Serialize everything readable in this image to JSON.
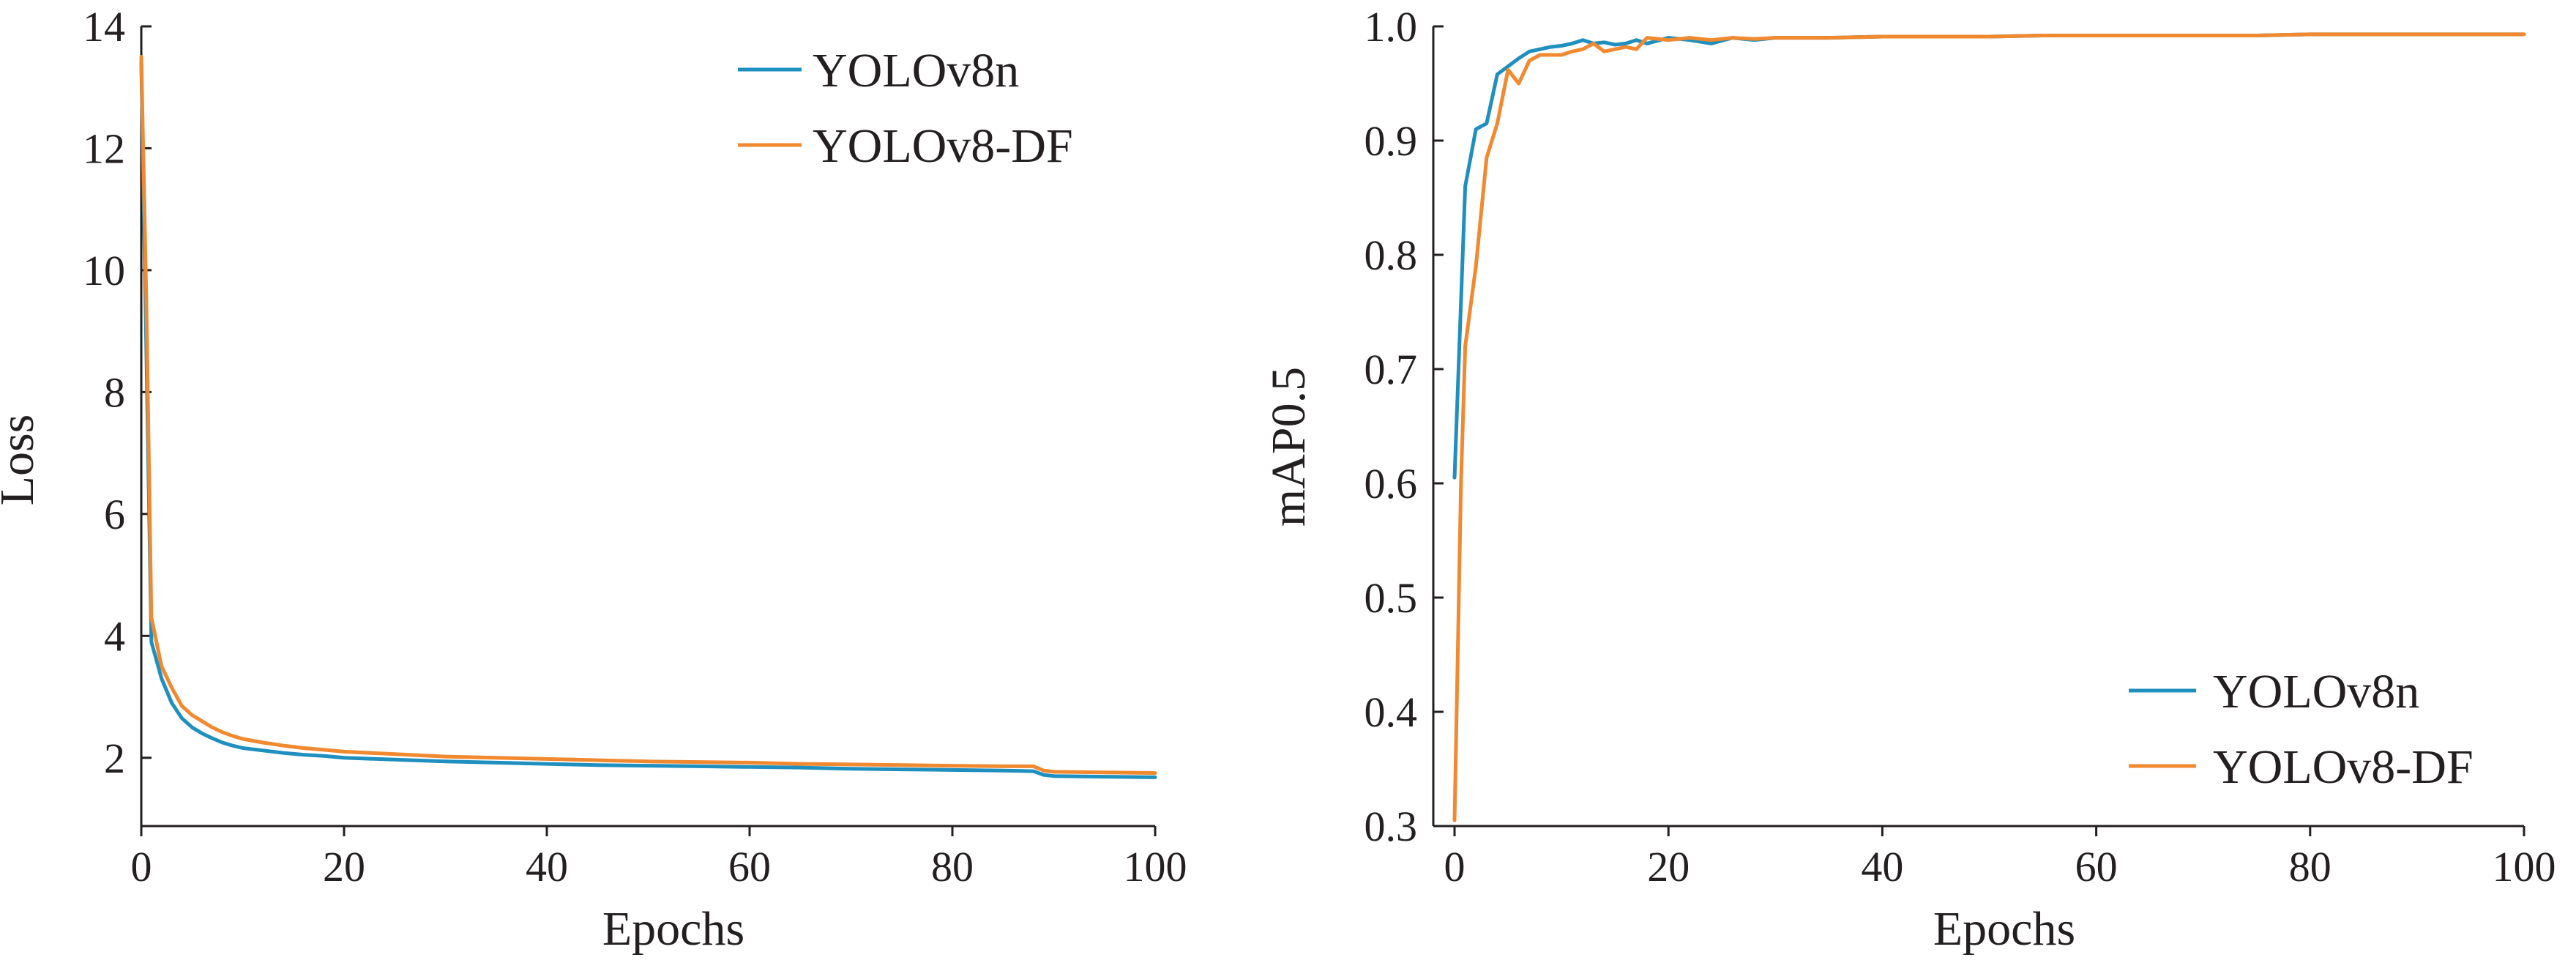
{
  "colors": {
    "series_1": "#1f8fbf",
    "series_2": "#f0892f",
    "axis": "#231f20"
  },
  "chart_data": [
    {
      "type": "line",
      "xlabel": "Epochs",
      "ylabel": "Loss",
      "xlim": [
        0,
        100
      ],
      "ylim": [
        1,
        14
      ],
      "xticks": [
        0,
        20,
        40,
        60,
        80,
        100
      ],
      "yticks": [
        2,
        4,
        6,
        8,
        10,
        12,
        14
      ],
      "legend_position": "top-right",
      "grid": false,
      "series": [
        {
          "name": "YOLOv8n",
          "x": [
            0,
            0.5,
            1,
            2,
            3,
            4,
            5,
            6,
            7,
            8,
            9,
            10,
            12,
            14,
            16,
            18,
            20,
            25,
            30,
            35,
            40,
            45,
            50,
            55,
            60,
            65,
            70,
            75,
            80,
            85,
            88,
            89,
            90,
            95,
            100
          ],
          "y": [
            13.4,
            8.7,
            3.9,
            3.3,
            2.9,
            2.65,
            2.5,
            2.4,
            2.32,
            2.25,
            2.2,
            2.16,
            2.12,
            2.08,
            2.05,
            2.03,
            2.0,
            1.97,
            1.94,
            1.92,
            1.9,
            1.88,
            1.87,
            1.86,
            1.85,
            1.84,
            1.82,
            1.81,
            1.8,
            1.79,
            1.78,
            1.72,
            1.7,
            1.69,
            1.68
          ]
        },
        {
          "name": "YOLOv8-DF",
          "x": [
            0,
            0.5,
            1,
            2,
            3,
            4,
            5,
            6,
            7,
            8,
            9,
            10,
            12,
            14,
            16,
            18,
            20,
            25,
            30,
            35,
            40,
            45,
            50,
            55,
            60,
            65,
            70,
            75,
            80,
            85,
            88,
            89,
            90,
            95,
            100
          ],
          "y": [
            13.5,
            9.5,
            4.3,
            3.5,
            3.15,
            2.85,
            2.7,
            2.6,
            2.5,
            2.42,
            2.36,
            2.31,
            2.25,
            2.2,
            2.16,
            2.13,
            2.1,
            2.06,
            2.02,
            2.0,
            1.98,
            1.96,
            1.94,
            1.93,
            1.92,
            1.9,
            1.89,
            1.88,
            1.87,
            1.86,
            1.86,
            1.79,
            1.77,
            1.76,
            1.75
          ]
        }
      ]
    },
    {
      "type": "line",
      "xlabel": "Epochs",
      "ylabel": "mAP0.5",
      "xlim": [
        0,
        100
      ],
      "ylim": [
        0.3,
        1.0
      ],
      "xticks": [
        0,
        20,
        40,
        60,
        80,
        100
      ],
      "yticks": [
        0.3,
        0.4,
        0.5,
        0.6,
        0.7,
        0.8,
        0.9,
        1.0
      ],
      "legend_position": "bottom-right",
      "grid": false,
      "series": [
        {
          "name": "YOLOv8n",
          "x": [
            0,
            1,
            2,
            3,
            4,
            5,
            6,
            7,
            8,
            9,
            10,
            11,
            12,
            13,
            14,
            15,
            16,
            17,
            18,
            20,
            22,
            24,
            26,
            28,
            30,
            35,
            40,
            45,
            50,
            55,
            60,
            65,
            70,
            75,
            80,
            85,
            90,
            95,
            100
          ],
          "y": [
            0.605,
            0.86,
            0.91,
            0.915,
            0.958,
            0.965,
            0.972,
            0.978,
            0.98,
            0.982,
            0.983,
            0.985,
            0.988,
            0.985,
            0.986,
            0.984,
            0.985,
            0.988,
            0.985,
            0.99,
            0.988,
            0.985,
            0.99,
            0.988,
            0.99,
            0.99,
            0.991,
            0.991,
            0.991,
            0.992,
            0.992,
            0.992,
            0.992,
            0.992,
            0.993,
            0.993,
            0.993,
            0.993,
            0.993
          ]
        },
        {
          "name": "YOLOv8-DF",
          "x": [
            0,
            0.3,
            0.6,
            1,
            2,
            3,
            4,
            5,
            6,
            7,
            8,
            9,
            10,
            11,
            12,
            13,
            14,
            15,
            16,
            17,
            18,
            20,
            22,
            24,
            26,
            28,
            30,
            35,
            40,
            45,
            50,
            55,
            60,
            65,
            70,
            75,
            80,
            85,
            90,
            95,
            100
          ],
          "y": [
            0.305,
            0.45,
            0.6,
            0.72,
            0.79,
            0.885,
            0.915,
            0.962,
            0.95,
            0.97,
            0.975,
            0.975,
            0.975,
            0.978,
            0.98,
            0.985,
            0.978,
            0.98,
            0.982,
            0.98,
            0.99,
            0.988,
            0.99,
            0.988,
            0.99,
            0.989,
            0.99,
            0.99,
            0.991,
            0.991,
            0.991,
            0.992,
            0.992,
            0.992,
            0.992,
            0.992,
            0.993,
            0.993,
            0.993,
            0.993,
            0.993
          ]
        }
      ]
    }
  ]
}
